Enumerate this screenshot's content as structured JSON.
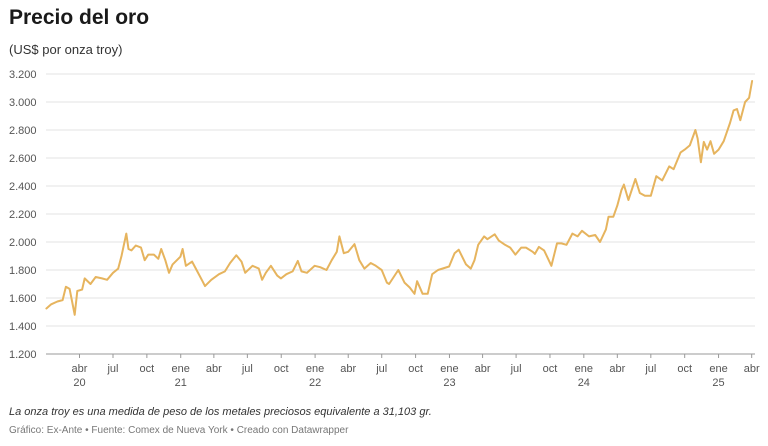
{
  "header": {
    "title": "Precio del oro",
    "subtitle": "(US$ por onza troy)"
  },
  "footer": {
    "note": "La onza troy es una medida de peso de los metales preciosos equivalente a 31,103 gr.",
    "credit_graph": "Gráfico: Ex-Ante",
    "separator": " • ",
    "credit_source": "Fuente: Comex de Nueva York",
    "credit_tool": "Creado con Datawrapper"
  },
  "colors": {
    "line": "#e6b45e",
    "grid": "#e3e3e3",
    "axis": "#999999"
  },
  "chart_data": {
    "type": "line",
    "title": "Precio del oro",
    "subtitle": "(US$ por onza troy)",
    "xlabel": "",
    "ylabel": "",
    "ylim": [
      1200,
      3200
    ],
    "xlim": [
      "2020-01-01",
      "2025-04-10"
    ],
    "grid": true,
    "y_ticks": [
      {
        "value": 1200,
        "label": "1.200"
      },
      {
        "value": 1400,
        "label": "1.400"
      },
      {
        "value": 1600,
        "label": "1.600"
      },
      {
        "value": 1800,
        "label": "1.800"
      },
      {
        "value": 2000,
        "label": "2.000"
      },
      {
        "value": 2200,
        "label": "2.200"
      },
      {
        "value": 2400,
        "label": "2.400"
      },
      {
        "value": 2600,
        "label": "2.600"
      },
      {
        "value": 2800,
        "label": "2.800"
      },
      {
        "value": 3000,
        "label": "3.000"
      },
      {
        "value": 3200,
        "label": "3.200"
      }
    ],
    "x_ticks": [
      {
        "date": "2020-04-01",
        "label": "abr",
        "year": "20"
      },
      {
        "date": "2020-07-01",
        "label": "jul",
        "year": ""
      },
      {
        "date": "2020-10-01",
        "label": "oct",
        "year": ""
      },
      {
        "date": "2021-01-01",
        "label": "ene",
        "year": "21"
      },
      {
        "date": "2021-04-01",
        "label": "abr",
        "year": ""
      },
      {
        "date": "2021-07-01",
        "label": "jul",
        "year": ""
      },
      {
        "date": "2021-10-01",
        "label": "oct",
        "year": ""
      },
      {
        "date": "2022-01-01",
        "label": "ene",
        "year": "22"
      },
      {
        "date": "2022-04-01",
        "label": "abr",
        "year": ""
      },
      {
        "date": "2022-07-01",
        "label": "jul",
        "year": ""
      },
      {
        "date": "2022-10-01",
        "label": "oct",
        "year": ""
      },
      {
        "date": "2023-01-01",
        "label": "ene",
        "year": "23"
      },
      {
        "date": "2023-04-01",
        "label": "abr",
        "year": ""
      },
      {
        "date": "2023-07-01",
        "label": "jul",
        "year": ""
      },
      {
        "date": "2023-10-01",
        "label": "oct",
        "year": ""
      },
      {
        "date": "2024-01-01",
        "label": "ene",
        "year": "24"
      },
      {
        "date": "2024-04-01",
        "label": "abr",
        "year": ""
      },
      {
        "date": "2024-07-01",
        "label": "jul",
        "year": ""
      },
      {
        "date": "2024-10-01",
        "label": "oct",
        "year": ""
      },
      {
        "date": "2025-01-01",
        "label": "ene",
        "year": "25"
      },
      {
        "date": "2025-04-01",
        "label": "abr",
        "year": ""
      }
    ],
    "series": [
      {
        "points": [
          [
            "2020-01-02",
            1525
          ],
          [
            "2020-01-15",
            1555
          ],
          [
            "2020-02-01",
            1575
          ],
          [
            "2020-02-15",
            1585
          ],
          [
            "2020-02-24",
            1680
          ],
          [
            "2020-03-05",
            1665
          ],
          [
            "2020-03-12",
            1575
          ],
          [
            "2020-03-19",
            1480
          ],
          [
            "2020-03-26",
            1650
          ],
          [
            "2020-04-08",
            1660
          ],
          [
            "2020-04-15",
            1740
          ],
          [
            "2020-05-01",
            1700
          ],
          [
            "2020-05-15",
            1750
          ],
          [
            "2020-06-01",
            1740
          ],
          [
            "2020-06-15",
            1730
          ],
          [
            "2020-07-01",
            1780
          ],
          [
            "2020-07-15",
            1810
          ],
          [
            "2020-07-24",
            1900
          ],
          [
            "2020-08-06",
            2060
          ],
          [
            "2020-08-12",
            1950
          ],
          [
            "2020-08-20",
            1940
          ],
          [
            "2020-09-01",
            1975
          ],
          [
            "2020-09-15",
            1960
          ],
          [
            "2020-09-25",
            1870
          ],
          [
            "2020-10-05",
            1910
          ],
          [
            "2020-10-20",
            1910
          ],
          [
            "2020-11-01",
            1880
          ],
          [
            "2020-11-09",
            1950
          ],
          [
            "2020-11-20",
            1870
          ],
          [
            "2020-11-30",
            1780
          ],
          [
            "2020-12-10",
            1840
          ],
          [
            "2020-12-31",
            1895
          ],
          [
            "2021-01-06",
            1950
          ],
          [
            "2021-01-15",
            1830
          ],
          [
            "2021-02-01",
            1860
          ],
          [
            "2021-02-15",
            1790
          ],
          [
            "2021-03-01",
            1720
          ],
          [
            "2021-03-08",
            1685
          ],
          [
            "2021-03-25",
            1730
          ],
          [
            "2021-04-15",
            1770
          ],
          [
            "2021-05-01",
            1790
          ],
          [
            "2021-05-15",
            1850
          ],
          [
            "2021-06-01",
            1905
          ],
          [
            "2021-06-15",
            1860
          ],
          [
            "2021-06-25",
            1780
          ],
          [
            "2021-07-15",
            1830
          ],
          [
            "2021-08-01",
            1810
          ],
          [
            "2021-08-10",
            1730
          ],
          [
            "2021-08-20",
            1780
          ],
          [
            "2021-09-03",
            1830
          ],
          [
            "2021-09-20",
            1760
          ],
          [
            "2021-09-30",
            1740
          ],
          [
            "2021-10-15",
            1770
          ],
          [
            "2021-11-01",
            1790
          ],
          [
            "2021-11-15",
            1865
          ],
          [
            "2021-11-25",
            1790
          ],
          [
            "2021-12-10",
            1780
          ],
          [
            "2021-12-31",
            1830
          ],
          [
            "2022-01-15",
            1820
          ],
          [
            "2022-02-01",
            1800
          ],
          [
            "2022-02-15",
            1870
          ],
          [
            "2022-03-01",
            1930
          ],
          [
            "2022-03-08",
            2040
          ],
          [
            "2022-03-20",
            1920
          ],
          [
            "2022-04-01",
            1930
          ],
          [
            "2022-04-18",
            1985
          ],
          [
            "2022-05-01",
            1870
          ],
          [
            "2022-05-15",
            1810
          ],
          [
            "2022-06-01",
            1850
          ],
          [
            "2022-06-15",
            1830
          ],
          [
            "2022-07-01",
            1800
          ],
          [
            "2022-07-15",
            1710
          ],
          [
            "2022-07-21",
            1700
          ],
          [
            "2022-08-15",
            1800
          ],
          [
            "2022-09-01",
            1710
          ],
          [
            "2022-09-15",
            1675
          ],
          [
            "2022-09-28",
            1630
          ],
          [
            "2022-10-05",
            1720
          ],
          [
            "2022-10-20",
            1630
          ],
          [
            "2022-11-03",
            1630
          ],
          [
            "2022-11-15",
            1770
          ],
          [
            "2022-12-01",
            1800
          ],
          [
            "2022-12-31",
            1825
          ],
          [
            "2023-01-15",
            1920
          ],
          [
            "2023-01-26",
            1945
          ],
          [
            "2023-02-15",
            1840
          ],
          [
            "2023-02-28",
            1810
          ],
          [
            "2023-03-10",
            1870
          ],
          [
            "2023-03-20",
            1980
          ],
          [
            "2023-04-05",
            2040
          ],
          [
            "2023-04-14",
            2020
          ],
          [
            "2023-05-04",
            2055
          ],
          [
            "2023-05-15",
            2010
          ],
          [
            "2023-06-01",
            1980
          ],
          [
            "2023-06-15",
            1960
          ],
          [
            "2023-06-29",
            1910
          ],
          [
            "2023-07-15",
            1960
          ],
          [
            "2023-07-28",
            1960
          ],
          [
            "2023-08-15",
            1930
          ],
          [
            "2023-08-21",
            1915
          ],
          [
            "2023-09-01",
            1965
          ],
          [
            "2023-09-15",
            1940
          ],
          [
            "2023-10-05",
            1830
          ],
          [
            "2023-10-20",
            1990
          ],
          [
            "2023-11-01",
            1990
          ],
          [
            "2023-11-15",
            1980
          ],
          [
            "2023-12-01",
            2060
          ],
          [
            "2023-12-15",
            2040
          ],
          [
            "2023-12-27",
            2080
          ],
          [
            "2024-01-15",
            2040
          ],
          [
            "2024-02-01",
            2050
          ],
          [
            "2024-02-14",
            2000
          ],
          [
            "2024-03-01",
            2090
          ],
          [
            "2024-03-08",
            2180
          ],
          [
            "2024-03-21",
            2180
          ],
          [
            "2024-04-01",
            2260
          ],
          [
            "2024-04-12",
            2370
          ],
          [
            "2024-04-19",
            2410
          ],
          [
            "2024-05-01",
            2300
          ],
          [
            "2024-05-20",
            2450
          ],
          [
            "2024-06-01",
            2350
          ],
          [
            "2024-06-15",
            2330
          ],
          [
            "2024-07-01",
            2330
          ],
          [
            "2024-07-16",
            2470
          ],
          [
            "2024-08-01",
            2440
          ],
          [
            "2024-08-20",
            2540
          ],
          [
            "2024-09-01",
            2520
          ],
          [
            "2024-09-20",
            2640
          ],
          [
            "2024-10-01",
            2660
          ],
          [
            "2024-10-15",
            2690
          ],
          [
            "2024-10-30",
            2800
          ],
          [
            "2024-11-05",
            2740
          ],
          [
            "2024-11-14",
            2570
          ],
          [
            "2024-11-22",
            2715
          ],
          [
            "2024-12-01",
            2660
          ],
          [
            "2024-12-10",
            2720
          ],
          [
            "2024-12-20",
            2630
          ],
          [
            "2025-01-01",
            2660
          ],
          [
            "2025-01-15",
            2720
          ],
          [
            "2025-02-01",
            2850
          ],
          [
            "2025-02-11",
            2940
          ],
          [
            "2025-02-20",
            2950
          ],
          [
            "2025-03-01",
            2870
          ],
          [
            "2025-03-14",
            3000
          ],
          [
            "2025-03-25",
            3030
          ],
          [
            "2025-04-02",
            3150
          ]
        ]
      }
    ]
  }
}
